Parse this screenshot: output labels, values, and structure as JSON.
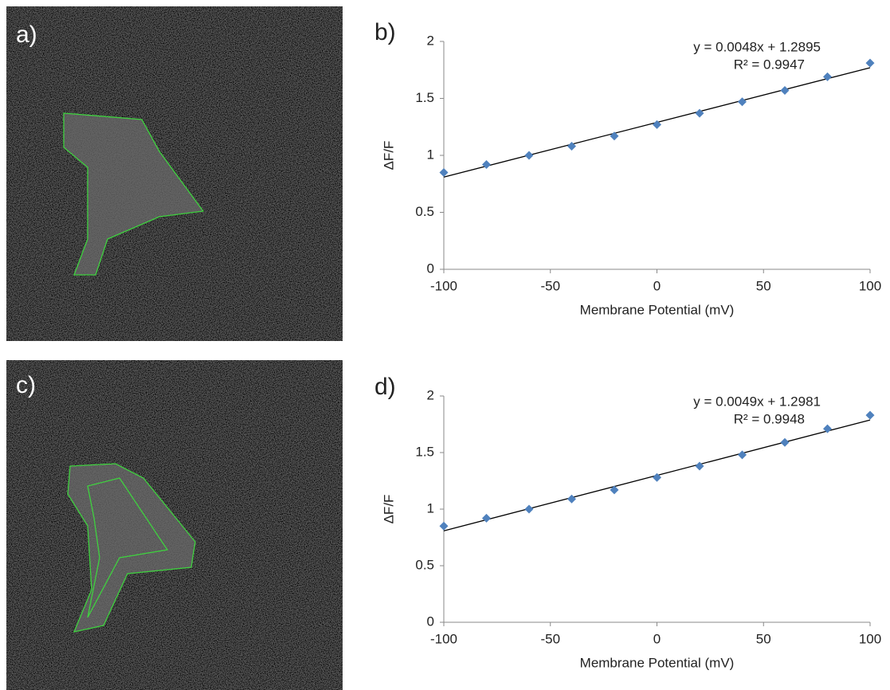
{
  "images": [
    {
      "label": "a)"
    },
    {
      "label": "c)"
    }
  ],
  "chart_data": [
    {
      "type": "scatter",
      "panel_label": "b)",
      "x_label": "Membrane Potential (mV)",
      "y_label": "ΔF/F",
      "x": [
        -100,
        -80,
        -60,
        -40,
        -20,
        0,
        20,
        40,
        60,
        80,
        100
      ],
      "values": [
        0.85,
        0.92,
        1.0,
        1.08,
        1.17,
        1.27,
        1.37,
        1.47,
        1.57,
        1.69,
        1.81
      ],
      "color": "#4f81bd",
      "trendline": {
        "slope": 0.0048,
        "intercept": 1.2895
      },
      "annotations": [
        "y = 0.0048x + 1.2895",
        "R² = 0.9947"
      ],
      "xlim": [
        -100,
        100
      ],
      "xticks": [
        -100,
        -50,
        0,
        50,
        100
      ],
      "ylim": [
        0,
        2
      ],
      "yticks": [
        0,
        0.5,
        1,
        1.5,
        2
      ],
      "grid": false
    },
    {
      "type": "scatter",
      "panel_label": "d)",
      "x_label": "Membrane Potential (mV)",
      "y_label": "ΔF/F",
      "x": [
        -100,
        -80,
        -60,
        -40,
        -20,
        0,
        20,
        40,
        60,
        80,
        100
      ],
      "values": [
        0.85,
        0.92,
        1.0,
        1.09,
        1.17,
        1.28,
        1.38,
        1.48,
        1.59,
        1.71,
        1.83
      ],
      "color": "#4f81bd",
      "trendline": {
        "slope": 0.0049,
        "intercept": 1.2981
      },
      "annotations": [
        "y = 0.0049x + 1.2981",
        "R² = 0.9948"
      ],
      "xlim": [
        -100,
        100
      ],
      "xticks": [
        -100,
        -50,
        0,
        50,
        100
      ],
      "ylim": [
        0,
        2
      ],
      "yticks": [
        0,
        0.5,
        1,
        1.5,
        2
      ],
      "grid": false
    }
  ]
}
